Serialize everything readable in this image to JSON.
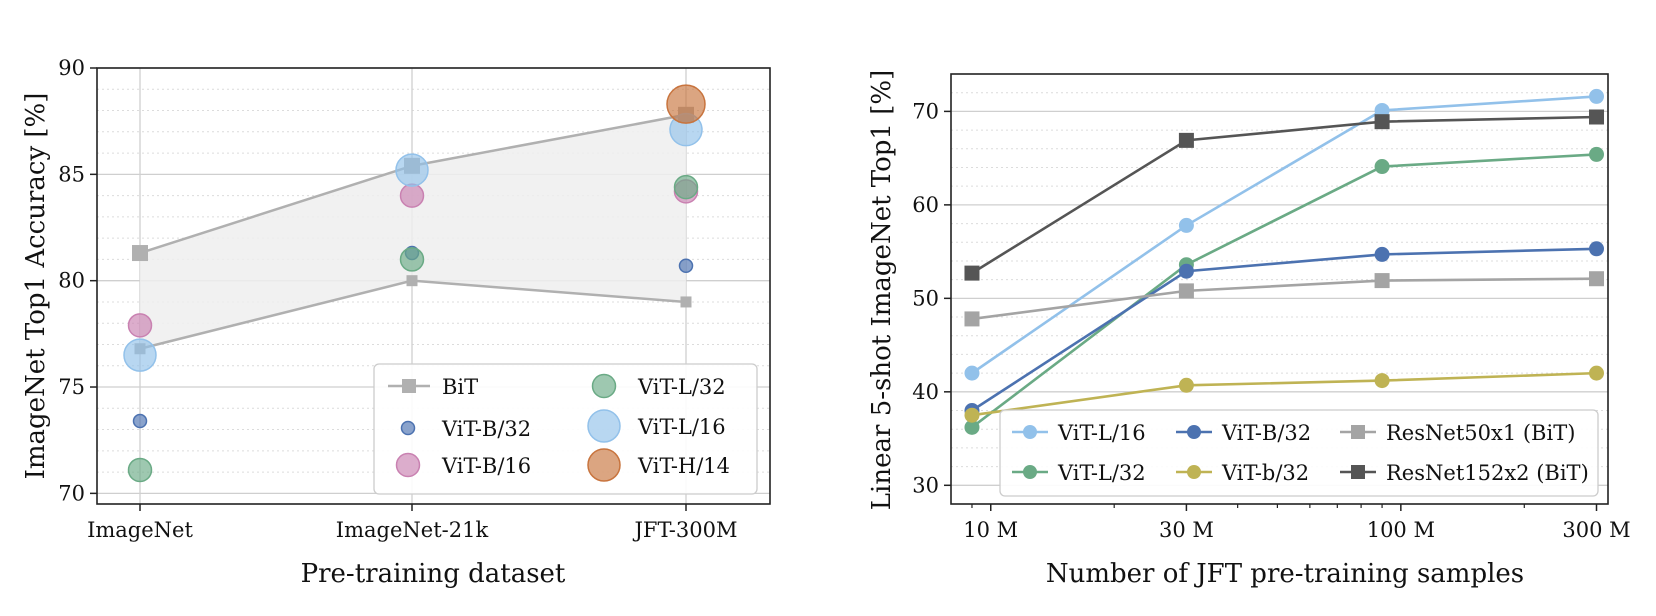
{
  "chart_data": [
    {
      "type": "scatter",
      "xlabel": "Pre-training dataset",
      "ylabel": "ImageNet Top1 Accuracy [%]",
      "categories": [
        "ImageNet",
        "ImageNet-21k",
        "JFT-300M"
      ],
      "ylim": [
        69.5,
        90
      ],
      "yticks": [
        70,
        75,
        80,
        85,
        90
      ],
      "grid": true,
      "legend_position": "lower-right",
      "bit_band": {
        "name": "BiT",
        "upper": [
          81.3,
          85.4,
          87.8
        ],
        "lower": [
          76.8,
          80.0,
          79.0
        ]
      },
      "series": [
        {
          "name": "ViT-B/32",
          "values": [
            73.4,
            81.3,
            80.7
          ],
          "color": "#4c72b0"
        },
        {
          "name": "ViT-B/16",
          "values": [
            77.9,
            84.0,
            84.2
          ],
          "color": "#c981b1"
        },
        {
          "name": "ViT-L/32",
          "values": [
            71.1,
            81.0,
            84.4
          ],
          "color": "#6aaa85"
        },
        {
          "name": "ViT-L/16",
          "values": [
            76.5,
            85.2,
            87.1
          ],
          "color": "#92c1ea"
        },
        {
          "name": "ViT-H/14",
          "values": [
            null,
            null,
            88.3
          ],
          "color": "#c8743e"
        }
      ],
      "legend_entries": [
        "BiT",
        "ViT-B/32",
        "ViT-B/16",
        "ViT-L/32",
        "ViT-L/16",
        "ViT-H/14"
      ]
    },
    {
      "type": "line",
      "xlabel": "Number of JFT pre-training samples",
      "ylabel": "Linear 5-shot ImageNet Top1 [%]",
      "x": [
        9,
        30,
        90,
        300
      ],
      "x_tick_labels": [
        "10 M",
        "30 M",
        "100 M",
        "300 M"
      ],
      "x_tick_values": [
        10,
        30,
        100,
        300
      ],
      "x_scale": "log",
      "xlim": [
        8,
        320
      ],
      "ylim": [
        28,
        74
      ],
      "yticks": [
        30,
        40,
        50,
        60,
        70
      ],
      "grid": true,
      "legend_position": "lower-right",
      "series": [
        {
          "name": "ViT-L/16",
          "values": [
            42.0,
            57.8,
            70.1,
            71.6
          ],
          "color": "#92c1ea",
          "marker": "circle"
        },
        {
          "name": "ViT-L/32",
          "values": [
            36.2,
            53.6,
            64.1,
            65.4
          ],
          "color": "#6aaa85",
          "marker": "circle"
        },
        {
          "name": "ViT-B/32",
          "values": [
            38.0,
            52.9,
            54.7,
            55.3
          ],
          "color": "#4c72b0",
          "marker": "circle"
        },
        {
          "name": "ViT-b/32",
          "values": [
            37.5,
            40.7,
            41.2,
            42.0
          ],
          "color": "#bfb354",
          "marker": "circle"
        },
        {
          "name": "ResNet50x1 (BiT)",
          "values": [
            47.8,
            50.8,
            51.9,
            52.1
          ],
          "color": "#a4a4a4",
          "marker": "square"
        },
        {
          "name": "ResNet152x2 (BiT)",
          "values": [
            52.7,
            66.9,
            68.9,
            69.4
          ],
          "color": "#555555",
          "marker": "square"
        }
      ]
    }
  ]
}
